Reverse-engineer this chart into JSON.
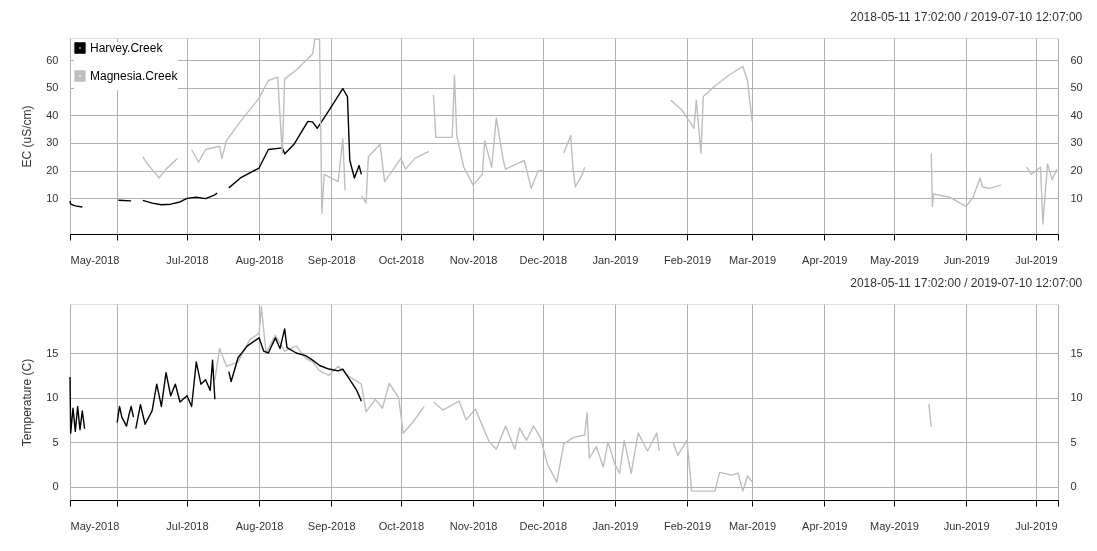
{
  "chart_data": [
    {
      "type": "line",
      "title": "2018-05-11 17:02:00 / 2019-07-10 12:07:00",
      "ylabel": "EC (uS/cm)",
      "grid": true,
      "legend": "top left",
      "xlim": [
        "2018-05-11T17:02",
        "2019-07-10T12:07"
      ],
      "xticks": [
        {
          "value": "2018-05-11T17:02",
          "label": "May-2018"
        },
        {
          "value": "2018-06-01",
          "label": null
        },
        {
          "value": "2018-07-01",
          "label": "Jul-2018"
        },
        {
          "value": "2018-08-01",
          "label": "Aug-2018"
        },
        {
          "value": "2018-09-01",
          "label": "Sep-2018"
        },
        {
          "value": "2018-10-01",
          "label": "Oct-2018"
        },
        {
          "value": "2018-11-01",
          "label": "Nov-2018"
        },
        {
          "value": "2018-12-01",
          "label": "Dec-2018"
        },
        {
          "value": "2019-01-01",
          "label": "Jan-2019"
        },
        {
          "value": "2019-02-01",
          "label": "Feb-2019"
        },
        {
          "value": "2019-03-01",
          "label": "Mar-2019"
        },
        {
          "value": "2019-04-01",
          "label": "Apr-2019"
        },
        {
          "value": "2019-05-01",
          "label": "May-2019"
        },
        {
          "value": "2019-06-01",
          "label": "Jun-2019"
        },
        {
          "value": "2019-07-01",
          "label": "Jul-2019"
        },
        {
          "value": "2019-07-10T12:07",
          "label": null
        }
      ],
      "ylim": [
        -3,
        68
      ],
      "yticks": [
        10,
        20,
        30,
        40,
        50,
        60
      ],
      "y2lim": [
        -3,
        68
      ],
      "y2ticks": [
        10,
        20,
        30,
        40,
        50,
        60
      ],
      "series": [
        {
          "name": "Harvey.Creek",
          "color": "#000000",
          "x": [
            "2018-05-11T17:02",
            "2018-05-12",
            "2018-05-14",
            "2018-05-17",
            "2018-05-24",
            "2018-06-01T12:00",
            "2018-06-07",
            "2018-06-08",
            "2018-06-12",
            "2018-06-16",
            "2018-06-20",
            "2018-06-24",
            "2018-06-28",
            "2018-07-01",
            "2018-07-05",
            "2018-07-09",
            "2018-07-13",
            "2018-07-14",
            "2018-07-16",
            "2018-07-19",
            "2018-07-24",
            "2018-08-01",
            "2018-08-05",
            "2018-08-11",
            "2018-08-12",
            "2018-08-16",
            "2018-08-22",
            "2018-08-24",
            "2018-08-26",
            "2018-08-31",
            "2018-09-06",
            "2018-09-08",
            "2018-09-09",
            "2018-09-11",
            "2018-09-13",
            "2018-09-14"
          ],
          "values": [
            9.0,
            7.8,
            7.2,
            6.8,
            null,
            9.2,
            9.0,
            null,
            9.2,
            8.2,
            7.6,
            7.8,
            8.6,
            9.9,
            10.3,
            9.8,
            11.2,
            11.8,
            null,
            13.7,
            17.3,
            20.9,
            27.6,
            28.2,
            26.0,
            29.5,
            37.8,
            37.6,
            35.3,
            41.7,
            49.7,
            46.8,
            23.7,
            17.3,
            21.8,
            18.6
          ]
        },
        {
          "name": "Magnesia.Creek",
          "color": "#bebebe",
          "x": [
            "2018-06-12",
            "2018-06-14",
            "2018-06-19",
            "2018-06-22",
            "2018-06-27",
            "2018-06-30",
            "2018-07-03",
            "2018-07-06",
            "2018-07-09",
            "2018-07-15",
            "2018-07-16",
            "2018-07-18",
            "2018-07-24",
            "2018-08-01",
            "2018-08-05",
            "2018-08-09",
            "2018-08-11",
            "2018-08-12",
            "2018-08-17",
            "2018-08-24",
            "2018-08-25",
            "2018-08-27",
            "2018-08-28",
            "2018-08-29",
            "2018-09-04",
            "2018-09-06",
            "2018-09-07",
            "2018-09-10",
            "2018-09-14",
            "2018-09-16",
            "2018-09-17",
            "2018-09-22",
            "2018-09-24",
            "2018-10-01",
            "2018-10-03",
            "2018-10-07",
            "2018-10-13",
            "2018-10-14",
            "2018-10-15",
            "2018-10-16",
            "2018-10-23",
            "2018-10-24",
            "2018-10-25",
            "2018-10-28",
            "2018-11-01",
            "2018-11-05",
            "2018-11-06",
            "2018-11-09",
            "2018-11-11",
            "2018-11-14",
            "2018-11-15",
            "2018-11-23",
            "2018-11-26",
            "2018-11-29",
            "2018-12-01",
            "2018-12-05",
            "2018-12-10",
            "2018-12-13",
            "2018-12-14",
            "2018-12-15",
            "2018-12-18",
            "2018-12-19",
            "2018-12-25",
            "2019-01-25",
            "2019-01-30",
            "2019-02-04",
            "2019-02-05",
            "2019-02-07",
            "2019-02-08",
            "2019-02-13",
            "2019-02-19",
            "2019-02-25",
            "2019-02-27",
            "2019-03-01",
            "2019-03-05",
            "2019-05-17",
            "2019-05-17T12:00",
            "2019-05-18",
            "2019-05-25",
            "2019-06-01",
            "2019-06-04",
            "2019-06-07",
            "2019-06-08",
            "2019-06-11",
            "2019-06-16",
            "2019-06-20",
            "2019-06-27",
            "2019-06-29",
            "2019-07-03",
            "2019-07-04",
            "2019-07-06",
            "2019-07-08",
            "2019-07-10"
          ],
          "values": [
            25.0,
            22.4,
            17.3,
            20.5,
            24.4,
            null,
            27.6,
            23.0,
            27.6,
            28.8,
            24.4,
            30.8,
            37.8,
            46.2,
            52.6,
            53.8,
            26.3,
            53.2,
            56.4,
            62.2,
            67.6,
            67.6,
            4.5,
            18.6,
            16.0,
            31.4,
            12.8,
            null,
            10.9,
            8.3,
            25.0,
            29.5,
            16.0,
            24.4,
            20.5,
            24.4,
            26.9,
            null,
            47.4,
            32.0,
            32.0,
            54.5,
            32.7,
            21.2,
            14.7,
            18.6,
            30.8,
            21.2,
            39.0,
            23.7,
            20.5,
            23.7,
            13.5,
            19.9,
            19.9,
            null,
            26.3,
            32.7,
            20.5,
            14.1,
            18.6,
            21.2,
            null,
            45.5,
            41.7,
            35.3,
            45.5,
            26.3,
            46.8,
            50.6,
            54.5,
            57.7,
            52.6,
            37.8,
            null,
            26.3,
            7.0,
            11.5,
            10.3,
            7.0,
            10.3,
            17.3,
            14.1,
            13.5,
            14.7,
            null,
            21.2,
            18.6,
            21.2,
            0.6,
            22.4,
            16.7,
            20.5
          ]
        }
      ]
    },
    {
      "type": "line",
      "title": "2018-05-11 17:02:00 / 2019-07-10 12:07:00",
      "ylabel": "Temperature (C)",
      "grid": true,
      "xlim": [
        "2018-05-11T17:02",
        "2019-07-10T12:07"
      ],
      "xticks": [
        {
          "value": "2018-05-11T17:02",
          "label": "May-2018"
        },
        {
          "value": "2018-06-01",
          "label": null
        },
        {
          "value": "2018-07-01",
          "label": "Jul-2018"
        },
        {
          "value": "2018-08-01",
          "label": "Aug-2018"
        },
        {
          "value": "2018-09-01",
          "label": "Sep-2018"
        },
        {
          "value": "2018-10-01",
          "label": "Oct-2018"
        },
        {
          "value": "2018-11-01",
          "label": "Nov-2018"
        },
        {
          "value": "2018-12-01",
          "label": "Dec-2018"
        },
        {
          "value": "2019-01-01",
          "label": "Jan-2019"
        },
        {
          "value": "2019-02-01",
          "label": "Feb-2019"
        },
        {
          "value": "2019-03-01",
          "label": "Mar-2019"
        },
        {
          "value": "2019-04-01",
          "label": "Apr-2019"
        },
        {
          "value": "2019-05-01",
          "label": "May-2019"
        },
        {
          "value": "2019-06-01",
          "label": "Jun-2019"
        },
        {
          "value": "2019-07-01",
          "label": "Jul-2019"
        },
        {
          "value": "2019-07-10T12:07",
          "label": null
        }
      ],
      "ylim": [
        -1.5,
        20.5
      ],
      "yticks": [
        0,
        5,
        10,
        15
      ],
      "y2lim": [
        -1.5,
        20.5
      ],
      "y2ticks": [
        0,
        5,
        10,
        15
      ],
      "series": [
        {
          "color": "#bebebe",
          "x": [
            "2018-07-13",
            "2018-07-15",
            "2018-07-18",
            "2018-07-23",
            "2018-07-28",
            "2018-08-01",
            "2018-08-02",
            "2018-08-04",
            "2018-08-08",
            "2018-08-12",
            "2018-08-17",
            "2018-08-21",
            "2018-08-24",
            "2018-08-27",
            "2018-08-31",
            "2018-09-04",
            "2018-09-08",
            "2018-09-14",
            "2018-09-16",
            "2018-09-20",
            "2018-09-23",
            "2018-09-26",
            "2018-09-30",
            "2018-10-02",
            "2018-10-06",
            "2018-10-11",
            "2018-10-13",
            "2018-10-15",
            "2018-10-19",
            "2018-10-26",
            "2018-10-29",
            "2018-11-02",
            "2018-11-08",
            "2018-11-11",
            "2018-11-15",
            "2018-11-19",
            "2018-11-21",
            "2018-11-24",
            "2018-11-27",
            "2018-11-30",
            "2018-12-03",
            "2018-12-07",
            "2018-12-10",
            "2018-12-14",
            "2018-12-19",
            "2018-12-20",
            "2018-12-21",
            "2018-12-24",
            "2018-12-27",
            "2018-12-29",
            "2019-01-01",
            "2019-01-03",
            "2019-01-05",
            "2019-01-08",
            "2019-01-11",
            "2019-01-15",
            "2019-01-19",
            "2019-01-20",
            "2019-01-23",
            "2019-01-26",
            "2019-01-28",
            "2019-02-01",
            "2019-02-03",
            "2019-02-13",
            "2019-02-15",
            "2019-02-20",
            "2019-02-23",
            "2019-02-25",
            "2019-02-27",
            "2019-03-01",
            "2019-03-05",
            "2019-05-16",
            "2019-05-17"
          ],
          "values": [
            12.0,
            15.5,
            13.5,
            14.0,
            16.5,
            17.2,
            20.2,
            15.0,
            17.0,
            15.2,
            15.8,
            14.4,
            14.0,
            13.0,
            12.5,
            13.5,
            12.5,
            11.5,
            8.4,
            9.8,
            8.8,
            11.6,
            10.0,
            6.0,
            7.2,
            9.0,
            null,
            9.5,
            8.6,
            9.6,
            7.5,
            8.7,
            5.0,
            4.2,
            6.8,
            4.2,
            6.6,
            5.2,
            6.8,
            5.5,
            2.5,
            0.5,
            4.8,
            5.5,
            5.8,
            8.3,
            3.2,
            4.5,
            2.2,
            5.0,
            2.5,
            1.5,
            5.2,
            1.5,
            6.0,
            4.0,
            6.0,
            4.0,
            null,
            5.0,
            3.5,
            5.2,
            -0.5,
            -0.5,
            1.6,
            1.3,
            1.5,
            -0.5,
            1.2,
            0.5,
            null,
            9.3,
            6.7
          ]
        },
        {
          "color": "#000000",
          "x": [
            "2018-05-11T17:02",
            "2018-05-12",
            "2018-05-13",
            "2018-05-14",
            "2018-05-15",
            "2018-05-16",
            "2018-05-17",
            "2018-05-18",
            "2018-05-24",
            "2018-06-01",
            "2018-06-02",
            "2018-06-03",
            "2018-06-05",
            "2018-06-06",
            "2018-06-07",
            "2018-06-08",
            "2018-06-08T12:00",
            "2018-06-09",
            "2018-06-11",
            "2018-06-13",
            "2018-06-16",
            "2018-06-18",
            "2018-06-20",
            "2018-06-22",
            "2018-06-24",
            "2018-06-26",
            "2018-06-28",
            "2018-07-01",
            "2018-07-03",
            "2018-07-05",
            "2018-07-07",
            "2018-07-09",
            "2018-07-11",
            "2018-07-12",
            "2018-07-13",
            "2018-07-16",
            "2018-07-19",
            "2018-07-20",
            "2018-07-23",
            "2018-07-27",
            "2018-08-01",
            "2018-08-03",
            "2018-08-05",
            "2018-08-08",
            "2018-08-10",
            "2018-08-12",
            "2018-08-13",
            "2018-08-17",
            "2018-08-21",
            "2018-08-24",
            "2018-08-27",
            "2018-08-31",
            "2018-09-04",
            "2018-09-06",
            "2018-09-09",
            "2018-09-12",
            "2018-09-14"
          ],
          "values": [
            12.3,
            6.0,
            8.8,
            6.2,
            9.0,
            6.4,
            8.5,
            6.5,
            null,
            7.2,
            9.0,
            7.8,
            6.8,
            8.0,
            9.0,
            7.8,
            null,
            6.5,
            9.2,
            7.0,
            8.5,
            11.5,
            9.0,
            12.8,
            10.2,
            11.5,
            9.5,
            10.2,
            9.0,
            14.0,
            11.5,
            12.0,
            10.8,
            14.2,
            9.8,
            null,
            12.9,
            11.8,
            14.5,
            15.8,
            16.7,
            15.2,
            15.0,
            16.7,
            15.5,
            17.7,
            15.6,
            15.0,
            14.7,
            14.2,
            13.6,
            13.2,
            13.0,
            13.2,
            12.0,
            10.8,
            9.6
          ]
        }
      ]
    }
  ]
}
